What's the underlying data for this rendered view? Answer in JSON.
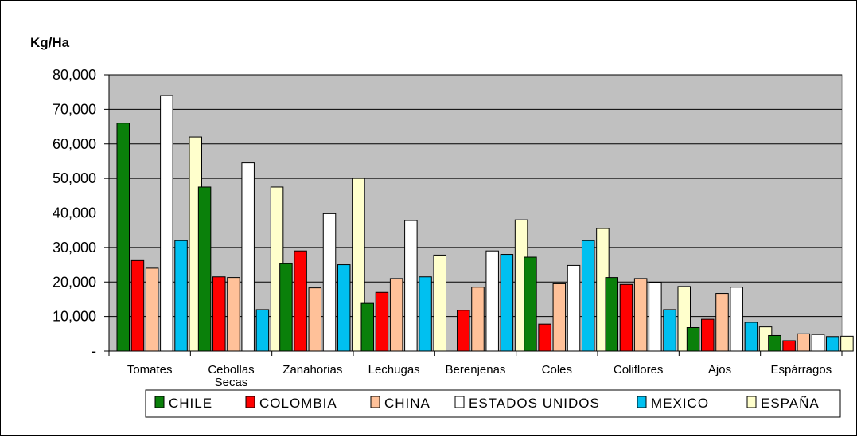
{
  "chart_data": {
    "type": "bar",
    "ylabel": "Kg/Ha",
    "ylim": [
      0,
      80000
    ],
    "yticks": [
      "-",
      "10,000",
      "20,000",
      "30,000",
      "40,000",
      "50,000",
      "60,000",
      "70,000",
      "80,000"
    ],
    "grid": true,
    "legend_position": "bottom",
    "categories": [
      [
        "Tomates"
      ],
      [
        "Cebollas",
        "Secas"
      ],
      [
        "Zanahorias"
      ],
      [
        "Lechugas"
      ],
      [
        "Berenjenas"
      ],
      [
        "Coles"
      ],
      [
        "Coliflores"
      ],
      [
        "Ajos"
      ],
      [
        "Espárragos"
      ]
    ],
    "series": [
      {
        "name": "CHILE",
        "color": "#0a800a",
        "values": [
          66000,
          47500,
          25300,
          13800,
          0,
          27200,
          21300,
          6800,
          4500
        ]
      },
      {
        "name": "COLOMBIA",
        "color": "#ff0000",
        "values": [
          26200,
          21500,
          29000,
          17000,
          11800,
          7800,
          19300,
          9200,
          3000
        ]
      },
      {
        "name": "CHINA",
        "color": "#ffc199",
        "values": [
          24000,
          21300,
          18300,
          21000,
          18500,
          19500,
          21000,
          16700,
          5000
        ]
      },
      {
        "name": "ESTADOS UNIDOS",
        "color": "#ffffff",
        "values": [
          74000,
          54500,
          39800,
          37800,
          29000,
          24800,
          19900,
          18500,
          4800
        ]
      },
      {
        "name": "MEXICO",
        "color": "#00c0f0",
        "values": [
          32000,
          12000,
          25000,
          21500,
          28000,
          32000,
          12000,
          8300,
          4200
        ]
      },
      {
        "name": "ESPAÑA",
        "color": "#ffffcc",
        "values": [
          62000,
          47500,
          50000,
          27800,
          38000,
          35500,
          18700,
          7000,
          4300
        ]
      }
    ],
    "plot_background": "#c0c0c0"
  }
}
